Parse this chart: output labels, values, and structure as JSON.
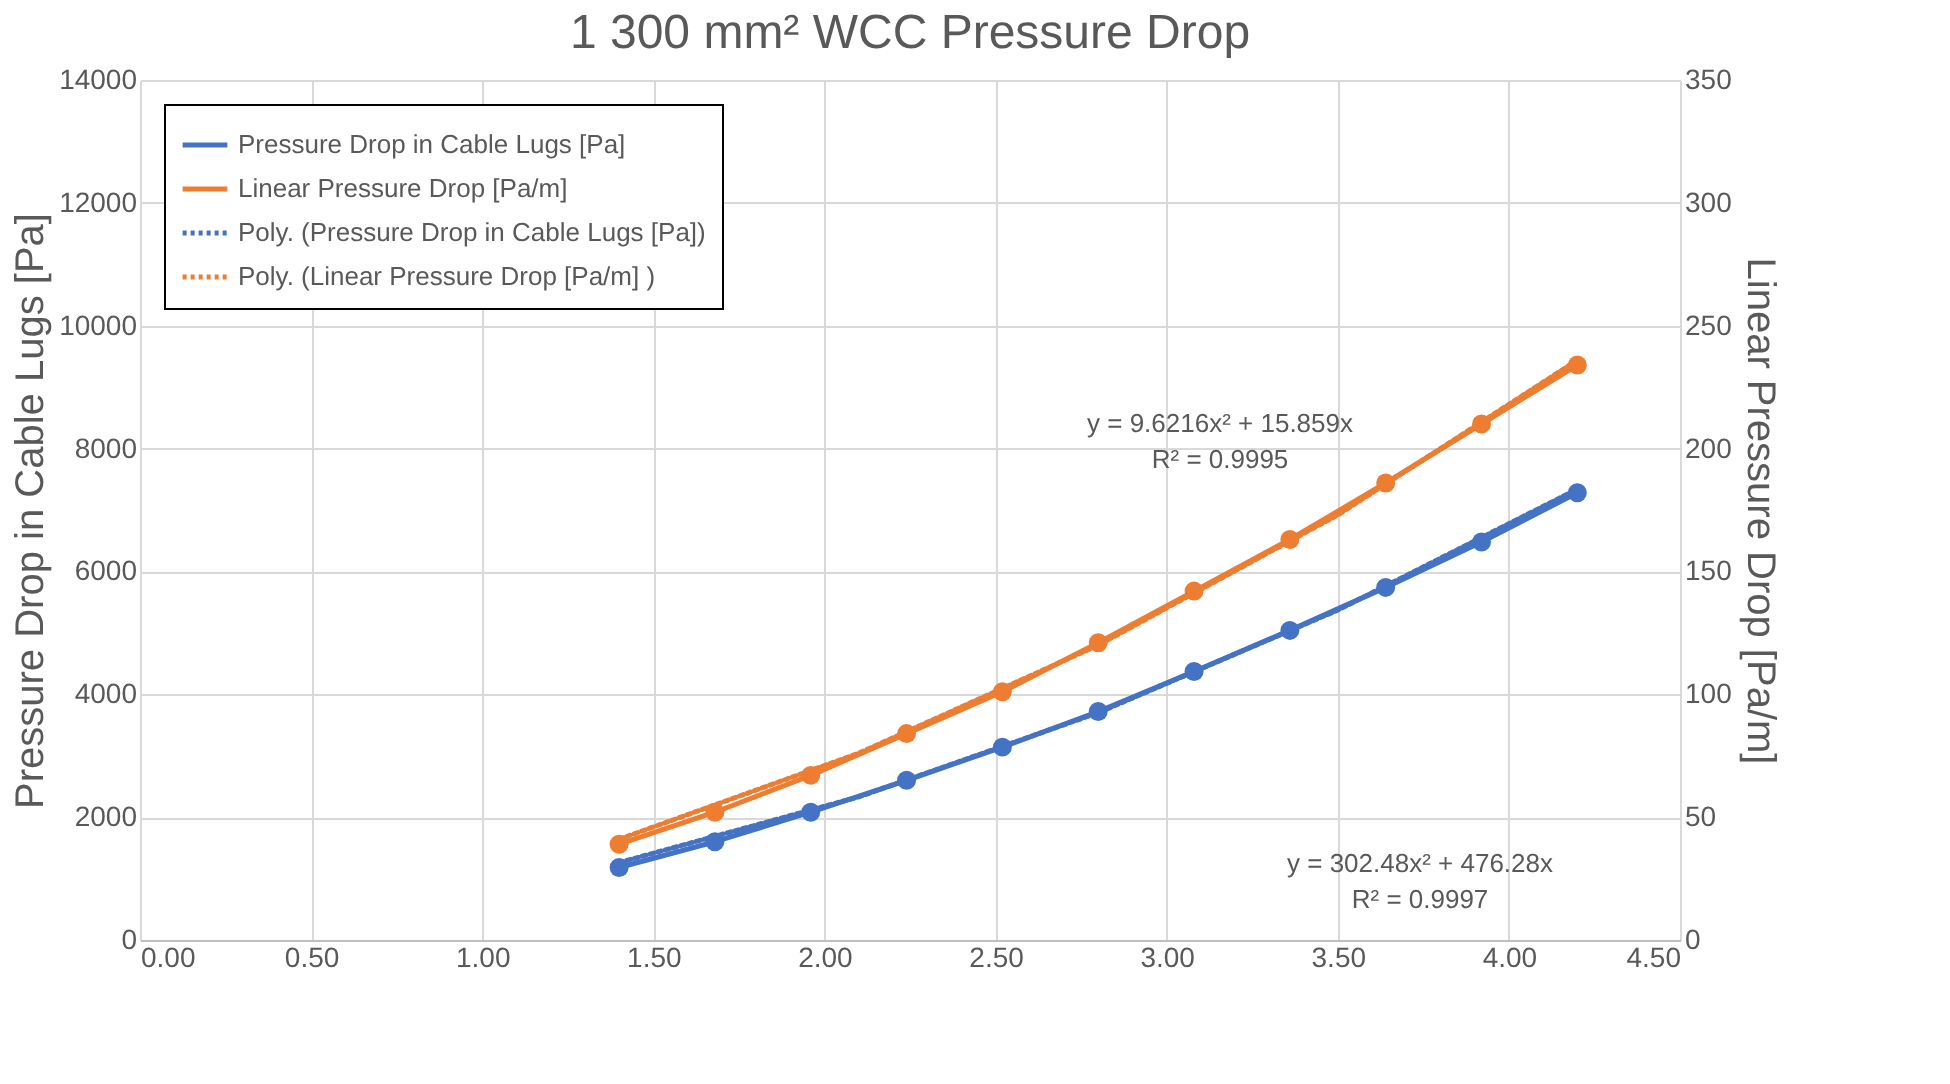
{
  "chart_data": {
    "type": "line",
    "title": "1 300 mm² WCC Pressure Drop",
    "ylabel": "Pressure Drop in Cable Lugs [Pa]",
    "y2label": "Linear Pressure Drop [Pa/m]",
    "x": [
      1.4,
      1.68,
      1.96,
      2.24,
      2.52,
      2.8,
      3.08,
      3.36,
      3.64,
      3.92,
      4.2
    ],
    "series": [
      {
        "name": "Pressure Drop in Cable Lugs [Pa]",
        "color": "#4472c4",
        "marker": "circle",
        "line_style": "solid",
        "axis": "y",
        "values": [
          1180,
          1600,
          2080,
          2600,
          3140,
          3720,
          4370,
          5040,
          5740,
          6480,
          7280
        ]
      },
      {
        "name": "Linear Pressure Drop [Pa/m]",
        "color": "#ed7d31",
        "marker": "circle",
        "line_style": "solid",
        "axis": "y2",
        "values": [
          39,
          52,
          67,
          84,
          101,
          121,
          142,
          163,
          186,
          210,
          234
        ]
      },
      {
        "name": "Poly. (Pressure Drop in Cable Lugs [Pa])",
        "color": "#4472c4",
        "marker": "none",
        "line_style": "dotted",
        "axis": "y",
        "x": [
          1.4,
          2.1,
          2.8,
          3.5,
          4.2
        ],
        "values": [
          1260,
          2330,
          3700,
          5370,
          7340
        ]
      },
      {
        "name": "Poly. (Linear Pressure Drop [Pa/m] )",
        "color": "#ed7d31",
        "marker": "none",
        "line_style": "dotted",
        "axis": "y2",
        "x": [
          1.4,
          2.1,
          2.8,
          3.5,
          4.2
        ],
        "values": [
          41,
          76,
          120,
          173,
          236
        ]
      }
    ],
    "xlim": [
      0,
      4.5
    ],
    "xticks": [
      {
        "value": 0,
        "label": "0.00"
      },
      {
        "value": 0.5,
        "label": "0.50"
      },
      {
        "value": 1,
        "label": "1.00"
      },
      {
        "value": 1.5,
        "label": "1.50"
      },
      {
        "value": 2,
        "label": "2.00"
      },
      {
        "value": 2.5,
        "label": "2.50"
      },
      {
        "value": 3,
        "label": "3.00"
      },
      {
        "value": 3.5,
        "label": "3.50"
      },
      {
        "value": 4,
        "label": "4.00"
      },
      {
        "value": 4.5,
        "label": "4.50"
      }
    ],
    "ylim": [
      0,
      14000
    ],
    "yticks": [
      0,
      2000,
      4000,
      6000,
      8000,
      10000,
      12000,
      14000
    ],
    "y2lim": [
      0,
      350
    ],
    "y2ticks": [
      0,
      50,
      100,
      150,
      200,
      250,
      300,
      350
    ],
    "grid": true,
    "legend": "top left",
    "annotations": [
      "y = 9.6216x² + 15.859x",
      "R² = 0.9995",
      "y = 302.48x² + 476.28x",
      "R² = 0.9997"
    ]
  }
}
